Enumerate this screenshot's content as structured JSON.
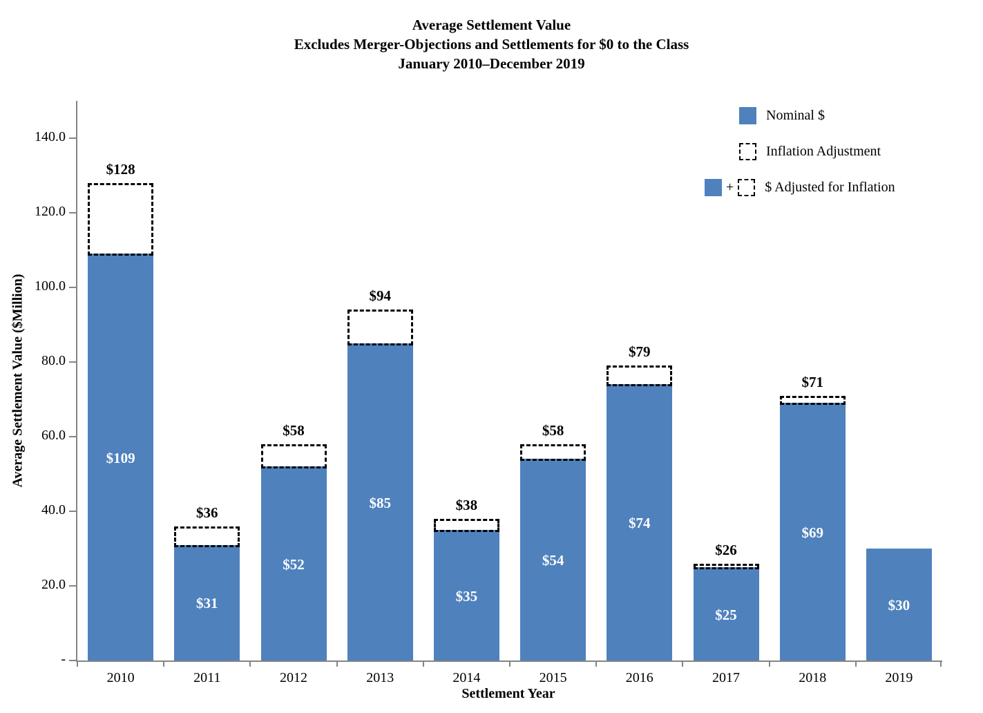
{
  "title": {
    "line1": "Average Settlement Value",
    "line2": "Excludes Merger-Objections and Settlements for $0 to the Class",
    "line3": "January 2010–December 2019"
  },
  "axes": {
    "y_label": "Average Settlement Value ($Million)",
    "x_label": "Settlement Year",
    "y_ticks": [
      {
        "value": 140,
        "label": "140.0"
      },
      {
        "value": 120,
        "label": "120.0"
      },
      {
        "value": 100,
        "label": "100.0"
      },
      {
        "value": 80,
        "label": "80.0"
      },
      {
        "value": 60,
        "label": "60.0"
      },
      {
        "value": 40,
        "label": "40.0"
      },
      {
        "value": 20,
        "label": "20.0"
      },
      {
        "value": 0,
        "label": "-"
      }
    ]
  },
  "legend": {
    "plus": "+",
    "items": [
      {
        "label": "Nominal $",
        "swatch": "solid"
      },
      {
        "label": "Inflation Adjustment",
        "swatch": "dashed"
      },
      {
        "label": "$ Adjusted for Inflation",
        "swatch": "solid-plus-dashed"
      }
    ]
  },
  "chart_data": {
    "type": "bar",
    "title": "Average Settlement Value",
    "subtitle": "Excludes Merger-Objections and Settlements for $0 to the Class",
    "period": "January 2010–December 2019",
    "xlabel": "Settlement Year",
    "ylabel": "Average Settlement Value ($Million)",
    "ylim": [
      0,
      150
    ],
    "grid": false,
    "legend_position": "top-right",
    "categories": [
      "2010",
      "2011",
      "2012",
      "2013",
      "2014",
      "2015",
      "2016",
      "2017",
      "2018",
      "2019"
    ],
    "series": [
      {
        "name": "Nominal $",
        "values": [
          109,
          31,
          52,
          85,
          35,
          54,
          74,
          25,
          69,
          30
        ],
        "labels": [
          "$109",
          "$31",
          "$52",
          "$85",
          "$35",
          "$54",
          "$74",
          "$25",
          "$69",
          "$30"
        ]
      },
      {
        "name": "$ Adjusted for Inflation",
        "values": [
          128,
          36,
          58,
          94,
          38,
          58,
          79,
          26,
          71,
          null
        ],
        "labels": [
          "$128",
          "$36",
          "$58",
          "$94",
          "$38",
          "$58",
          "$79",
          "$26",
          "$71",
          null
        ]
      }
    ],
    "colors": {
      "bar": "#4F81BD",
      "inflation_box_border": "#000000",
      "axis": "#848484",
      "bar_label_text": "#ffffff",
      "total_label_text": "#000000"
    }
  }
}
